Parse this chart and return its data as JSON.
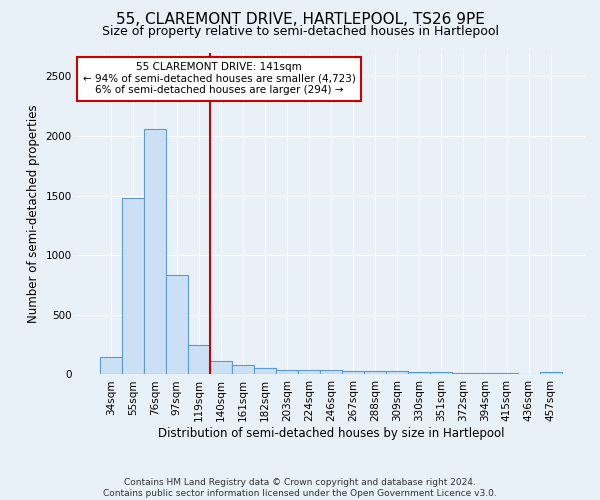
{
  "title": "55, CLAREMONT DRIVE, HARTLEPOOL, TS26 9PE",
  "subtitle": "Size of property relative to semi-detached houses in Hartlepool",
  "xlabel": "Distribution of semi-detached houses by size in Hartlepool",
  "ylabel_text": "Number of semi-detached properties",
  "categories": [
    "34sqm",
    "55sqm",
    "76sqm",
    "97sqm",
    "119sqm",
    "140sqm",
    "161sqm",
    "182sqm",
    "203sqm",
    "224sqm",
    "246sqm",
    "267sqm",
    "288sqm",
    "309sqm",
    "330sqm",
    "351sqm",
    "372sqm",
    "394sqm",
    "415sqm",
    "436sqm",
    "457sqm"
  ],
  "values": [
    150,
    1480,
    2060,
    835,
    250,
    115,
    80,
    50,
    40,
    38,
    35,
    33,
    30,
    28,
    22,
    18,
    15,
    12,
    10,
    8,
    20
  ],
  "bar_color": "#cce0f5",
  "bar_edge_color": "#5b9bd5",
  "vline_color": "#cc0000",
  "annotation_box_text": "55 CLAREMONT DRIVE: 141sqm\n← 94% of semi-detached houses are smaller (4,723)\n6% of semi-detached houses are larger (294) →",
  "annotation_box_color": "#ffffff",
  "annotation_box_edge_color": "#cc0000",
  "background_color": "#e8f0f8",
  "footer_text": "Contains HM Land Registry data © Crown copyright and database right 2024.\nContains public sector information licensed under the Open Government Licence v3.0.",
  "ylim": [
    0,
    2700
  ],
  "title_fontsize": 11,
  "subtitle_fontsize": 9,
  "axis_fontsize": 8.5,
  "tick_fontsize": 7.5,
  "footer_fontsize": 6.5
}
